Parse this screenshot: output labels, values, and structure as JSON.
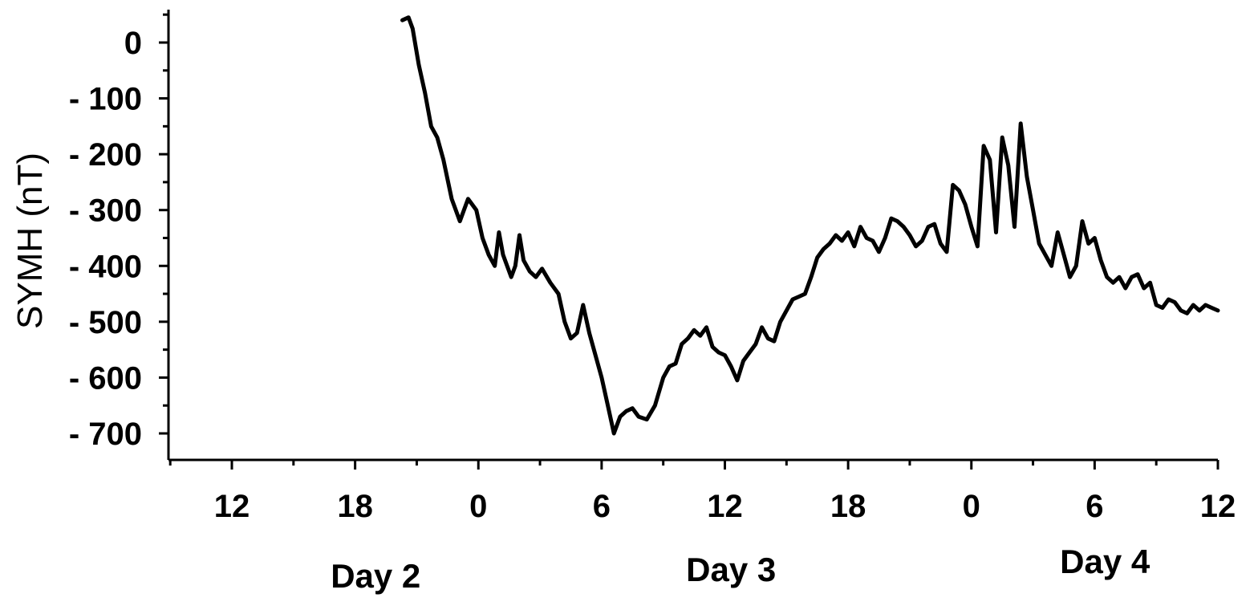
{
  "chart_data": {
    "type": "line",
    "title": "",
    "xlabel": "",
    "ylabel": "SYMH (nT)",
    "ylim": [
      -750,
      55
    ],
    "x_unit": "hours from 12 UT on Day 2 (ticks labeled by UT hour)",
    "xlim": [
      -10.5,
      72
    ],
    "x_ticks": [
      {
        "x": 0,
        "label": "12"
      },
      {
        "x": 6,
        "label": "18"
      },
      {
        "x": 12,
        "label": "0"
      },
      {
        "x": 18,
        "label": "6"
      },
      {
        "x": 24,
        "label": "12"
      },
      {
        "x": 30,
        "label": "18"
      },
      {
        "x": 36,
        "label": "0"
      },
      {
        "x": 42,
        "label": "6"
      },
      {
        "x": 48,
        "label": "12"
      }
    ],
    "y_ticks": [
      {
        "y": 0,
        "label": "0"
      },
      {
        "y": -100,
        "label": "- 100"
      },
      {
        "y": -200,
        "label": "- 200"
      },
      {
        "y": -300,
        "label": "- 300"
      },
      {
        "y": -400,
        "label": "- 400"
      },
      {
        "y": -500,
        "label": "- 500"
      },
      {
        "y": -600,
        "label": "- 600"
      },
      {
        "y": -700,
        "label": "- 700"
      }
    ],
    "day_labels": [
      {
        "x": 7,
        "label": "Day 2"
      },
      {
        "x": 24.3,
        "label": "Day 3"
      },
      {
        "x": 42.5,
        "label": "Day 4"
      }
    ],
    "grid": false,
    "series": [
      {
        "color": "#000000",
        "x": [
          8.3,
          8.6,
          8.8,
          9.1,
          9.4,
          9.7,
          10.0,
          10.3,
          10.7,
          11.1,
          11.5,
          11.9,
          12.2,
          12.5,
          12.8,
          13.0,
          13.2,
          13.4,
          13.6,
          13.8,
          14.0,
          14.2,
          14.5,
          14.8,
          15.1,
          15.5,
          15.9,
          16.2,
          16.5,
          16.8,
          17.1,
          17.4,
          17.7,
          18.0,
          18.3,
          18.6,
          18.9,
          19.2,
          19.5,
          19.8,
          20.2,
          20.6,
          21.0,
          21.3,
          21.6,
          21.9,
          22.2,
          22.5,
          22.8,
          23.1,
          23.4,
          23.7,
          24.0,
          24.3,
          24.6,
          24.9,
          25.2,
          25.5,
          25.8,
          26.1,
          26.4,
          26.7,
          27.0,
          27.3,
          27.6,
          27.9,
          28.2,
          28.5,
          28.8,
          29.1,
          29.4,
          29.7,
          30.0,
          30.3,
          30.6,
          30.9,
          31.2,
          31.5,
          31.8,
          32.1,
          32.4,
          32.7,
          33.0,
          33.3,
          33.6,
          33.9,
          34.2,
          34.5,
          34.8,
          35.1,
          35.4,
          35.7,
          36.0,
          36.3,
          36.6,
          36.9,
          37.2,
          37.5,
          37.8,
          38.1,
          38.4,
          38.7,
          39.0,
          39.3,
          39.6,
          39.9,
          40.2,
          40.5,
          40.8,
          41.1,
          41.4,
          41.7,
          42.0,
          42.3,
          42.6,
          42.9,
          43.2,
          43.5,
          43.8,
          44.1,
          44.4,
          44.7,
          45.0,
          45.3,
          45.6,
          45.9,
          46.2,
          46.5,
          46.8,
          47.1,
          47.4,
          47.7,
          48.0
        ],
        "y": [
          40,
          45,
          25,
          -40,
          -90,
          -150,
          -170,
          -210,
          -280,
          -320,
          -280,
          -300,
          -350,
          -380,
          -400,
          -340,
          -380,
          -400,
          -420,
          -400,
          -345,
          -390,
          -410,
          -420,
          -405,
          -430,
          -450,
          -500,
          -530,
          -520,
          -470,
          -520,
          -560,
          -600,
          -650,
          -700,
          -670,
          -660,
          -655,
          -670,
          -675,
          -650,
          -600,
          -580,
          -575,
          -540,
          -530,
          -515,
          -525,
          -510,
          -545,
          -555,
          -560,
          -580,
          -605,
          -570,
          -555,
          -540,
          -510,
          -530,
          -535,
          -500,
          -480,
          -460,
          -455,
          -450,
          -420,
          -385,
          -370,
          -360,
          -345,
          -355,
          -340,
          -365,
          -330,
          -350,
          -355,
          -375,
          -350,
          -315,
          -320,
          -330,
          -345,
          -365,
          -355,
          -330,
          -325,
          -360,
          -375,
          -255,
          -265,
          -290,
          -330,
          -365,
          -185,
          -210,
          -340,
          -170,
          -220,
          -330,
          -145,
          -240,
          -300,
          -360,
          -380,
          -400,
          -340,
          -380,
          -420,
          -400,
          -320,
          -360,
          -350,
          -390,
          -420,
          -430,
          -420,
          -440,
          -420,
          -415,
          -440,
          -430,
          -470,
          -475,
          -460,
          -465,
          -480,
          -485,
          -470,
          -480,
          -470,
          -475,
          -480
        ]
      }
    ]
  }
}
